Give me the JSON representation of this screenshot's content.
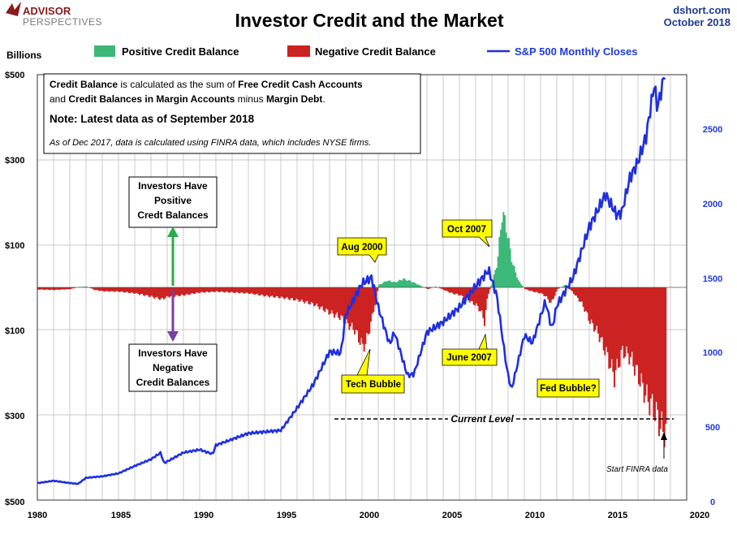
{
  "header": {
    "logo_line1": "ADVISOR",
    "logo_line2": "PERSPECTIVES",
    "title": "Investor Credit and the Market",
    "source": "dshort.com",
    "date": "October 2018"
  },
  "legend": {
    "positive": "Positive Credit Balance",
    "negative": "Negative Credit Balance",
    "sp500": "S&P 500 Monthly Closes"
  },
  "axis": {
    "left_title": "Billions",
    "left_ticks": [
      "$500",
      "$300",
      "$100",
      "$100",
      "$300",
      "$500"
    ],
    "right_ticks": [
      "2500",
      "2000",
      "1500",
      "1000",
      "500",
      "0"
    ],
    "x_ticks": [
      "1980",
      "1985",
      "1990",
      "1995",
      "2000",
      "2005",
      "2010",
      "2015",
      "2020"
    ]
  },
  "note_box": {
    "line1_b1": "Credit Balance",
    "line1_t1": " is calculated as the sum of ",
    "line1_b2": "Free Credit Cash Accounts",
    "line2_t0": "and ",
    "line2_b1": "Credit Balances in Margin Accounts",
    "line2_t1": " minus ",
    "line2_b2": "Margin Debt",
    "line2_t2": ".",
    "heading": "Note: Latest data as of September 2018",
    "italic": "As of Dec 2017, data is calculated using FINRA data, which includes NYSE firms."
  },
  "boxes": {
    "positive": [
      "Investors Have",
      "Positive",
      "Credt Balances"
    ],
    "negative": [
      "Investors Have",
      "Negative",
      "Credit Balances"
    ]
  },
  "callouts": {
    "aug2000": "Aug 2000",
    "oct2007": "Oct 2007",
    "june2007": "June 2007",
    "tech_bubble": "Tech Bubble",
    "fed_bubble": "Fed Bubble?"
  },
  "annotations": {
    "current_level": "Current Level",
    "start_finra": "Start FINRA data"
  },
  "colors": {
    "positive": "#3cb878",
    "negative": "#cc2222",
    "sp500": "#1f2fe0",
    "callout_fill": "#ffff00",
    "arrow_up": "#2eaa4a",
    "arrow_down": "#7b3fa0"
  },
  "chart_data": {
    "type": "bar",
    "title": "Investor Credit and the Market",
    "ylabel": "Billions",
    "x_range": [
      1980,
      2020
    ],
    "ylim": [
      -500,
      500
    ],
    "y2lim": [
      0,
      2900
    ],
    "note": "Left axis uses a symmetric compressed scale; right axis is S&P 500 level.",
    "series": [
      {
        "name": "Credit Balance",
        "unit": "billions",
        "points": [
          [
            1980.0,
            -5
          ],
          [
            1981.0,
            -6
          ],
          [
            1982.0,
            -4
          ],
          [
            1982.5,
            1
          ],
          [
            1983.0,
            2
          ],
          [
            1983.5,
            -6
          ],
          [
            1984.0,
            -9
          ],
          [
            1985.0,
            -10
          ],
          [
            1986.0,
            -14
          ],
          [
            1987.0,
            -22
          ],
          [
            1987.6,
            -28
          ],
          [
            1988.0,
            -22
          ],
          [
            1989.0,
            -18
          ],
          [
            1990.0,
            -12
          ],
          [
            1991.0,
            -10
          ],
          [
            1992.0,
            -12
          ],
          [
            1993.0,
            -14
          ],
          [
            1994.0,
            -20
          ],
          [
            1995.0,
            -24
          ],
          [
            1996.0,
            -30
          ],
          [
            1997.0,
            -40
          ],
          [
            1998.0,
            -60
          ],
          [
            1998.7,
            -72
          ],
          [
            1999.0,
            -85
          ],
          [
            1999.5,
            -100
          ],
          [
            2000.0,
            -140
          ],
          [
            2000.2,
            -130
          ],
          [
            2000.5,
            -85
          ],
          [
            2000.8,
            -30
          ],
          [
            2001.0,
            6
          ],
          [
            2001.5,
            16
          ],
          [
            2002.0,
            12
          ],
          [
            2002.5,
            20
          ],
          [
            2003.0,
            14
          ],
          [
            2003.5,
            5
          ],
          [
            2004.0,
            -4
          ],
          [
            2004.5,
            2
          ],
          [
            2005.0,
            -6
          ],
          [
            2005.5,
            -14
          ],
          [
            2006.0,
            -18
          ],
          [
            2006.5,
            -30
          ],
          [
            2007.0,
            -42
          ],
          [
            2007.3,
            -58
          ],
          [
            2007.5,
            -82
          ],
          [
            2007.7,
            -20
          ],
          [
            2008.0,
            15
          ],
          [
            2008.3,
            60
          ],
          [
            2008.6,
            180
          ],
          [
            2008.9,
            130
          ],
          [
            2009.2,
            60
          ],
          [
            2009.6,
            15
          ],
          [
            2010.0,
            -4
          ],
          [
            2010.5,
            -10
          ],
          [
            2011.0,
            -14
          ],
          [
            2011.3,
            -22
          ],
          [
            2011.6,
            -38
          ],
          [
            2012.0,
            -4
          ],
          [
            2012.5,
            6
          ],
          [
            2013.0,
            -14
          ],
          [
            2013.5,
            -38
          ],
          [
            2014.0,
            -80
          ],
          [
            2014.5,
            -108
          ],
          [
            2015.0,
            -155
          ],
          [
            2015.5,
            -210
          ],
          [
            2016.0,
            -150
          ],
          [
            2016.5,
            -165
          ],
          [
            2017.0,
            -210
          ],
          [
            2017.5,
            -260
          ],
          [
            2018.0,
            -290
          ],
          [
            2018.5,
            -340
          ],
          [
            2018.7,
            -330
          ]
        ]
      },
      {
        "name": "S&P 500 Monthly Closes",
        "unit": "index",
        "points": [
          [
            1980.0,
            114
          ],
          [
            1980.5,
            122
          ],
          [
            1981.0,
            130
          ],
          [
            1982.0,
            115
          ],
          [
            1982.5,
            109
          ],
          [
            1983.0,
            150
          ],
          [
            1984.0,
            160
          ],
          [
            1985.0,
            180
          ],
          [
            1986.0,
            230
          ],
          [
            1987.0,
            275
          ],
          [
            1987.6,
            320
          ],
          [
            1987.8,
            248
          ],
          [
            1988.0,
            260
          ],
          [
            1989.0,
            320
          ],
          [
            1990.0,
            340
          ],
          [
            1990.8,
            310
          ],
          [
            1991.0,
            370
          ],
          [
            1992.0,
            410
          ],
          [
            1993.0,
            450
          ],
          [
            1994.0,
            460
          ],
          [
            1995.0,
            470
          ],
          [
            1996.0,
            620
          ],
          [
            1997.0,
            780
          ],
          [
            1998.0,
            1000
          ],
          [
            1998.7,
            990
          ],
          [
            1999.0,
            1250
          ],
          [
            2000.0,
            1460
          ],
          [
            2000.6,
            1500
          ],
          [
            2001.0,
            1300
          ],
          [
            2001.7,
            1050
          ],
          [
            2002.0,
            1130
          ],
          [
            2002.8,
            840
          ],
          [
            2003.2,
            850
          ],
          [
            2004.0,
            1130
          ],
          [
            2005.0,
            1200
          ],
          [
            2006.0,
            1300
          ],
          [
            2007.0,
            1440
          ],
          [
            2007.8,
            1550
          ],
          [
            2008.3,
            1380
          ],
          [
            2008.9,
            900
          ],
          [
            2009.2,
            740
          ],
          [
            2010.0,
            1110
          ],
          [
            2010.5,
            1060
          ],
          [
            2011.3,
            1340
          ],
          [
            2011.7,
            1150
          ],
          [
            2012.0,
            1310
          ],
          [
            2013.0,
            1500
          ],
          [
            2014.0,
            1840
          ],
          [
            2015.0,
            2060
          ],
          [
            2015.7,
            1920
          ],
          [
            2016.0,
            1940
          ],
          [
            2016.5,
            2170
          ],
          [
            2017.0,
            2280
          ],
          [
            2017.5,
            2450
          ],
          [
            2018.0,
            2800
          ],
          [
            2018.2,
            2640
          ],
          [
            2018.7,
            2900
          ]
        ]
      }
    ]
  }
}
